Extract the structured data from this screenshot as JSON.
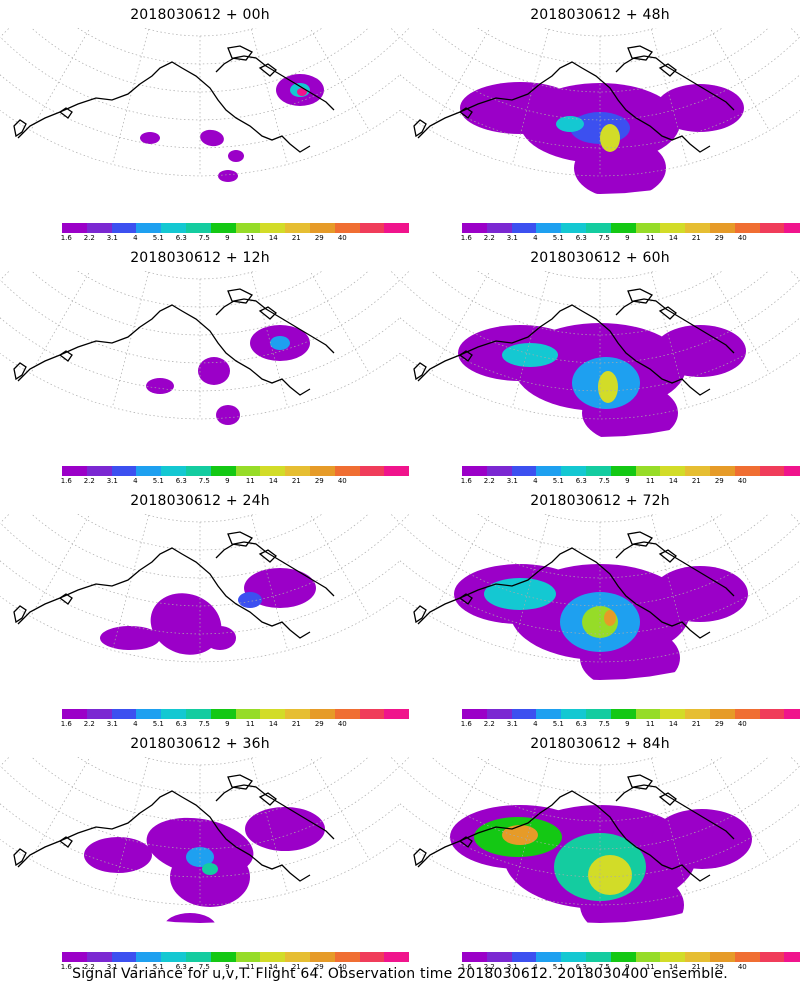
{
  "colorbar": {
    "colors": [
      "#9b00c8",
      "#7b28d2",
      "#3c50f0",
      "#1ea0f0",
      "#14c8d2",
      "#14cca0",
      "#14c814",
      "#96dc28",
      "#d2dc28",
      "#e6be32",
      "#e69b28",
      "#f06e32",
      "#f03c5a",
      "#f0148c"
    ],
    "labels": [
      "1.6",
      "2.2",
      "3.1",
      "4",
      "5.1",
      "6.3",
      "7.5",
      "9",
      "11",
      "14",
      "21",
      "29",
      "40"
    ]
  },
  "panels": [
    {
      "title": "2018030612 + 00h",
      "level": 0
    },
    {
      "title": "2018030612 + 48h",
      "level": 4
    },
    {
      "title": "2018030612 + 12h",
      "level": 1
    },
    {
      "title": "2018030612 + 60h",
      "level": 5
    },
    {
      "title": "2018030612 + 24h",
      "level": 2
    },
    {
      "title": "2018030612 + 72h",
      "level": 6
    },
    {
      "title": "2018030612 + 36h",
      "level": 3
    },
    {
      "title": "2018030612 + 84h",
      "level": 7
    }
  ],
  "footer": "Signal Variance for u,v,T. Flight 64. Observation time 2018030612. 2018030400 ensemble."
}
